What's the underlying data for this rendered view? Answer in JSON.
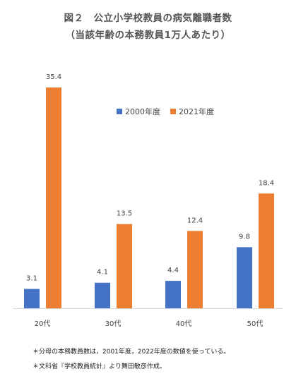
{
  "title": "図２　公立小学校教員の病気離職者数",
  "subtitle": "（当該年齢の本務教員1万人あたり）",
  "colors": {
    "s2000": "#4472C4",
    "s2021": "#ED7D31"
  },
  "notes": [
    "＊分母の本務教員数は，2001年度，2022年度の数値を使っている。",
    "＊文科省『学校教員統計』より舞田敏彦作成。"
  ],
  "chart_data": {
    "type": "bar",
    "title": "図２　公立小学校教員の病気離職者数",
    "subtitle": "（当該年齢の本務教員1万人あたり）",
    "categories": [
      "20代",
      "30代",
      "40代",
      "50代"
    ],
    "series": [
      {
        "name": "2000年度",
        "values": [
          3.1,
          4.1,
          4.4,
          9.8
        ]
      },
      {
        "name": "2021年度",
        "values": [
          35.4,
          13.5,
          12.4,
          18.4
        ]
      }
    ],
    "ylim": [
      0,
      36
    ],
    "grid": false,
    "legend": "top-center",
    "data_labels": true
  }
}
